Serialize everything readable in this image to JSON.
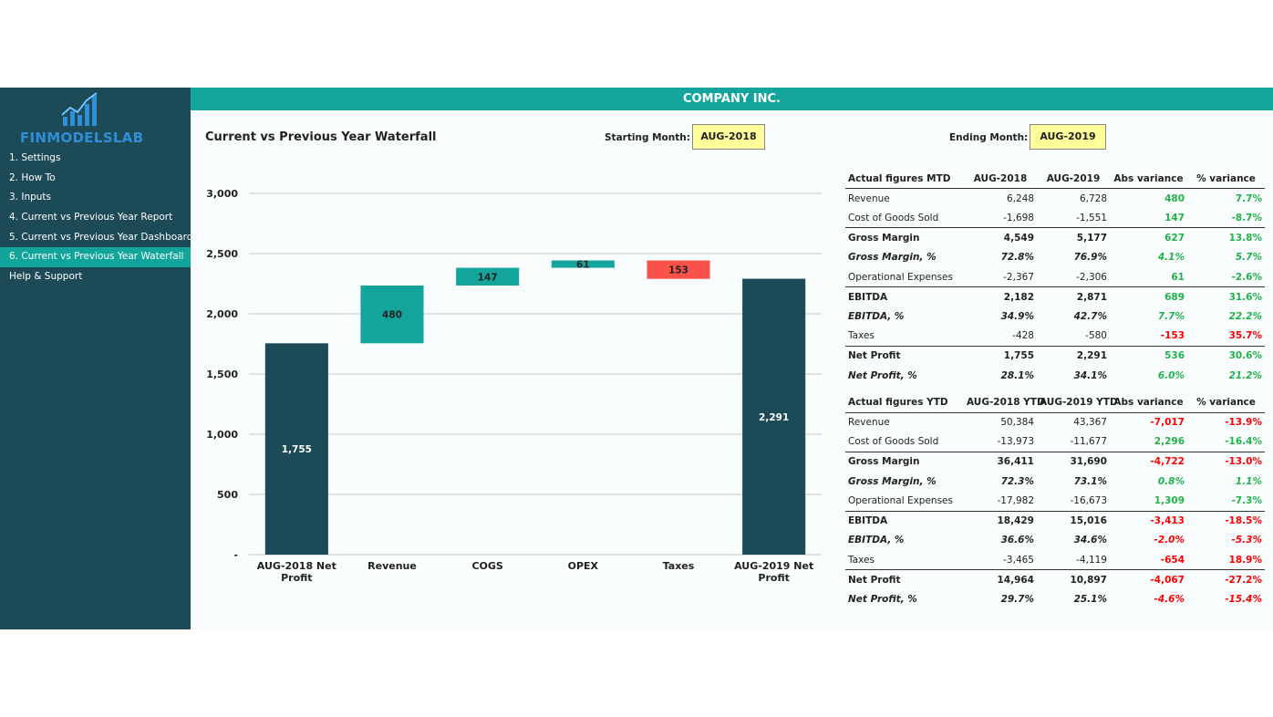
{
  "brand": {
    "name": "FINMODELSLAB"
  },
  "sidebar": {
    "items": [
      {
        "label": "1. Settings",
        "active": false
      },
      {
        "label": "2. How To",
        "active": false
      },
      {
        "label": "3. Inputs",
        "active": false
      },
      {
        "label": "4. Current vs Previous Year Report",
        "active": false
      },
      {
        "label": "5. Current vs Previous Year Dashboard",
        "active": false
      },
      {
        "label": "6. Current vs Previous Year Waterfall",
        "active": true
      },
      {
        "label": "Help & Support",
        "active": false
      }
    ]
  },
  "header": {
    "company": "COMPANY INC."
  },
  "page": {
    "title": "Current vs Previous Year Waterfall",
    "starting_label": "Starting Month:",
    "starting_value": "AUG-2018",
    "ending_label": "Ending Month:",
    "ending_value": "AUG-2019"
  },
  "colors": {
    "total": "#1d4a57",
    "increase": "#13a59b",
    "decrease": "#f8534a",
    "accent": "#13a59b"
  },
  "chart_data": {
    "type": "bar",
    "subtype": "waterfall",
    "categories": [
      "AUG-2018 Net Profit",
      "Revenue",
      "COGS",
      "OPEX",
      "Taxes",
      "AUG-2019 Net Profit"
    ],
    "steps": [
      {
        "label": "AUG-2018 Net Profit",
        "kind": "total",
        "value": 1755,
        "display": "1,755"
      },
      {
        "label": "Revenue",
        "kind": "increase",
        "value": 480,
        "display": "480"
      },
      {
        "label": "COGS",
        "kind": "increase",
        "value": 147,
        "display": "147"
      },
      {
        "label": "OPEX",
        "kind": "increase",
        "value": 61,
        "display": "61"
      },
      {
        "label": "Taxes",
        "kind": "decrease",
        "value": -153,
        "display": "153"
      },
      {
        "label": "AUG-2019 Net Profit",
        "kind": "total",
        "value": 2291,
        "display": "2,291"
      }
    ],
    "yticks": [
      {
        "value": 0,
        "label": "-"
      },
      {
        "value": 500,
        "label": "500"
      },
      {
        "value": 1000,
        "label": "1,000"
      },
      {
        "value": 1500,
        "label": "1,500"
      },
      {
        "value": 2000,
        "label": "2,000"
      },
      {
        "value": 2500,
        "label": "2,500"
      },
      {
        "value": 3000,
        "label": "3,000"
      }
    ],
    "ylim": [
      0,
      3000
    ],
    "grid": true,
    "legend": "none"
  },
  "mtd": {
    "headers": [
      "Actual figures MTD",
      "AUG-2018",
      "AUG-2019",
      "Abs variance",
      "% variance"
    ],
    "rows": [
      {
        "label": "Revenue",
        "a": "6,248",
        "b": "6,728",
        "abs": "480",
        "abs_sign": "pos",
        "pct": "7.7%",
        "pct_sign": "pos",
        "style": "normal"
      },
      {
        "label": "Cost of Goods Sold",
        "a": "-1,698",
        "b": "-1,551",
        "abs": "147",
        "abs_sign": "pos",
        "pct": "-8.7%",
        "pct_sign": "pos",
        "style": "normal"
      },
      {
        "label": "Gross Margin",
        "a": "4,549",
        "b": "5,177",
        "abs": "627",
        "abs_sign": "pos",
        "pct": "13.8%",
        "pct_sign": "pos",
        "style": "bold",
        "topline": true
      },
      {
        "label": "Gross Margin, %",
        "a": "72.8%",
        "b": "76.9%",
        "abs": "4.1%",
        "abs_sign": "pos",
        "pct": "5.7%",
        "pct_sign": "pos",
        "style": "ital"
      },
      {
        "label": "Operational Expenses",
        "a": "-2,367",
        "b": "-2,306",
        "abs": "61",
        "abs_sign": "pos",
        "pct": "-2.6%",
        "pct_sign": "pos",
        "style": "normal"
      },
      {
        "label": "EBITDA",
        "a": "2,182",
        "b": "2,871",
        "abs": "689",
        "abs_sign": "pos",
        "pct": "31.6%",
        "pct_sign": "pos",
        "style": "bold",
        "topline": true
      },
      {
        "label": "EBITDA, %",
        "a": "34.9%",
        "b": "42.7%",
        "abs": "7.7%",
        "abs_sign": "pos",
        "pct": "22.2%",
        "pct_sign": "pos",
        "style": "ital"
      },
      {
        "label": "Taxes",
        "a": "-428",
        "b": "-580",
        "abs": "-153",
        "abs_sign": "neg",
        "pct": "35.7%",
        "pct_sign": "neg",
        "style": "normal"
      },
      {
        "label": "Net Profit",
        "a": "1,755",
        "b": "2,291",
        "abs": "536",
        "abs_sign": "pos",
        "pct": "30.6%",
        "pct_sign": "pos",
        "style": "bold",
        "topline": true
      },
      {
        "label": "Net Profit, %",
        "a": "28.1%",
        "b": "34.1%",
        "abs": "6.0%",
        "abs_sign": "pos",
        "pct": "21.2%",
        "pct_sign": "pos",
        "style": "ital"
      }
    ]
  },
  "ytd": {
    "headers": [
      "Actual figures YTD",
      "AUG-2018 YTD",
      "AUG-2019 YTD",
      "Abs variance",
      "% variance"
    ],
    "rows": [
      {
        "label": "Revenue",
        "a": "50,384",
        "b": "43,367",
        "abs": "-7,017",
        "abs_sign": "neg",
        "pct": "-13.9%",
        "pct_sign": "neg",
        "style": "normal"
      },
      {
        "label": "Cost of Goods Sold",
        "a": "-13,973",
        "b": "-11,677",
        "abs": "2,296",
        "abs_sign": "pos",
        "pct": "-16.4%",
        "pct_sign": "pos",
        "style": "normal"
      },
      {
        "label": "Gross Margin",
        "a": "36,411",
        "b": "31,690",
        "abs": "-4,722",
        "abs_sign": "neg",
        "pct": "-13.0%",
        "pct_sign": "neg",
        "style": "bold",
        "topline": true
      },
      {
        "label": "Gross Margin, %",
        "a": "72.3%",
        "b": "73.1%",
        "abs": "0.8%",
        "abs_sign": "pos",
        "pct": "1.1%",
        "pct_sign": "pos",
        "style": "ital"
      },
      {
        "label": "Operational Expenses",
        "a": "-17,982",
        "b": "-16,673",
        "abs": "1,309",
        "abs_sign": "pos",
        "pct": "-7.3%",
        "pct_sign": "pos",
        "style": "normal"
      },
      {
        "label": "EBITDA",
        "a": "18,429",
        "b": "15,016",
        "abs": "-3,413",
        "abs_sign": "neg",
        "pct": "-18.5%",
        "pct_sign": "neg",
        "style": "bold",
        "topline": true
      },
      {
        "label": "EBITDA, %",
        "a": "36.6%",
        "b": "34.6%",
        "abs": "-2.0%",
        "abs_sign": "neg",
        "pct": "-5.3%",
        "pct_sign": "neg",
        "style": "ital"
      },
      {
        "label": "Taxes",
        "a": "-3,465",
        "b": "-4,119",
        "abs": "-654",
        "abs_sign": "neg",
        "pct": "18.9%",
        "pct_sign": "neg",
        "style": "normal"
      },
      {
        "label": "Net Profit",
        "a": "14,964",
        "b": "10,897",
        "abs": "-4,067",
        "abs_sign": "neg",
        "pct": "-27.2%",
        "pct_sign": "neg",
        "style": "bold",
        "topline": true
      },
      {
        "label": "Net Profit, %",
        "a": "29.7%",
        "b": "25.1%",
        "abs": "-4.6%",
        "abs_sign": "neg",
        "pct": "-15.4%",
        "pct_sign": "neg",
        "style": "ital"
      }
    ]
  }
}
